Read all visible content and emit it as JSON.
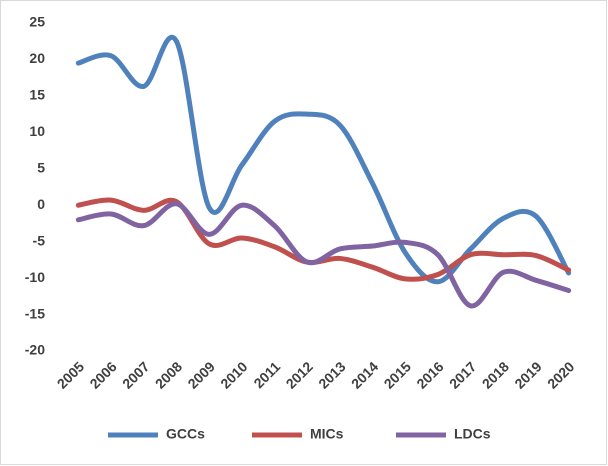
{
  "chart_data": {
    "type": "line",
    "categories": [
      "2005",
      "2006",
      "2007",
      "2008",
      "2009",
      "2010",
      "2011",
      "2012",
      "2013",
      "2014",
      "2015",
      "2016",
      "2017",
      "2018",
      "2019",
      "2020"
    ],
    "series": [
      {
        "name": "GCCs",
        "color": "#4f81bd",
        "values": [
          19.5,
          20.5,
          16.3,
          22.5,
          -0.3,
          5.5,
          11.5,
          12.5,
          11,
          3,
          -6.5,
          -10.5,
          -6,
          -1.8,
          -1.5,
          -9.3
        ]
      },
      {
        "name": "MICs",
        "color": "#c0504d",
        "values": [
          0,
          0.7,
          -0.7,
          0.5,
          -5.3,
          -4.5,
          -5.7,
          -7.8,
          -7.3,
          -8.5,
          -10.1,
          -9.5,
          -6.8,
          -6.8,
          -6.9,
          -8.9
        ]
      },
      {
        "name": "LDCs",
        "color": "#8064a2",
        "values": [
          -2,
          -1.2,
          -2.8,
          0.2,
          -4,
          0,
          -2.8,
          -7.8,
          -6,
          -5.6,
          -5.1,
          -6.8,
          -13.8,
          -9.2,
          -10.3,
          -11.7
        ]
      }
    ],
    "ylim": [
      -20,
      25
    ],
    "yticks": [
      -20,
      -15,
      -10,
      -5,
      0,
      5,
      10,
      15,
      20,
      25
    ],
    "grid": false,
    "legend": "bottom"
  }
}
